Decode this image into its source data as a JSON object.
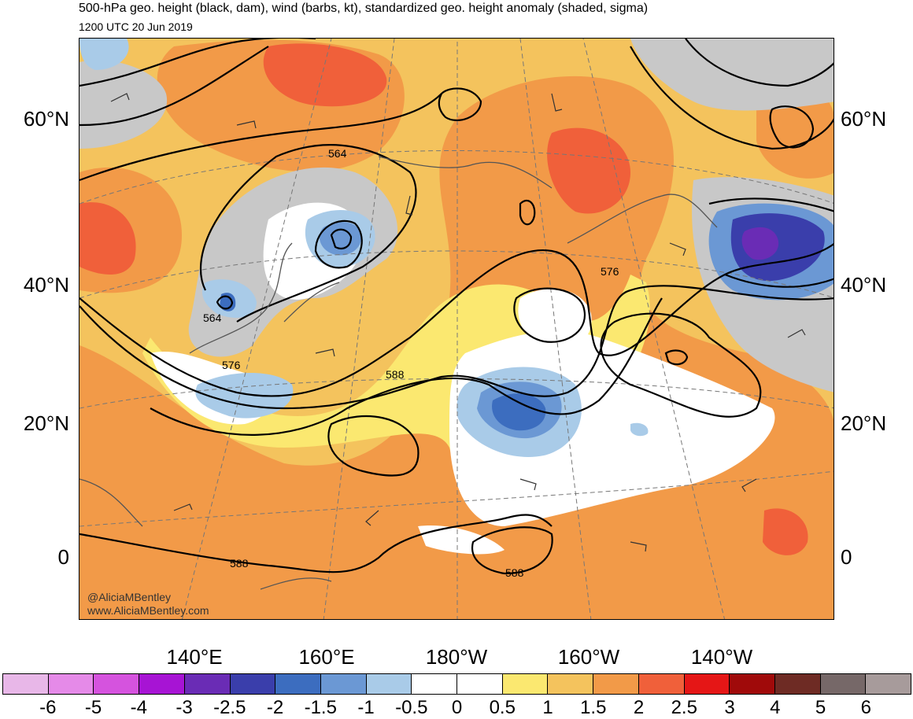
{
  "title": "500-hPa geo. height (black, dam), wind (barbs, kt), standardized geo. height anomaly (shaded, sigma)",
  "subtitle": "1200 UTC 20 Jun 2019",
  "credit_handle": "@AliciaMBentley",
  "credit_url": "www.AliciaMBentley.com",
  "lat_labels": [
    "60°N",
    "40°N",
    "20°N",
    "0"
  ],
  "lon_labels": [
    "140°E",
    "160°E",
    "180°W",
    "160°W",
    "140°W"
  ],
  "contour_labels": [
    "564",
    "564",
    "576",
    "576",
    "588",
    "588",
    "588"
  ],
  "colorbar": {
    "ticks": [
      "-6",
      "-5",
      "-4",
      "-3",
      "-2.5",
      "-2",
      "-1.5",
      "-1",
      "-0.5",
      "0",
      "0.5",
      "1",
      "1.5",
      "2",
      "2.5",
      "3",
      "4",
      "5",
      "6"
    ],
    "colors": [
      "#e8b7e8",
      "#e58ae8",
      "#d553de",
      "#a714d4",
      "#6a2cb5",
      "#3a3eab",
      "#3c6dbf",
      "#6b98d4",
      "#a9cbe8",
      "#ffffff",
      "#ffffff",
      "#fbe870",
      "#f4c35d",
      "#f29a48",
      "#f0603a",
      "#e51616",
      "#a00a0a",
      "#6e2b24",
      "#766868",
      "#a79b9b"
    ]
  },
  "colors": {
    "anomaly_pos_1": "#f4c35d",
    "anomaly_pos_15": "#f29a48",
    "anomaly_pos_2": "#f0603a",
    "anomaly_low": "#fbe870",
    "anomaly_neg_05": "#a9cbe8",
    "anomaly_neg_1": "#6b98d4",
    "anomaly_neg_15": "#3c6dbf",
    "anomaly_neg_25": "#3a3eab",
    "land_gray": "#c8c8c8"
  }
}
